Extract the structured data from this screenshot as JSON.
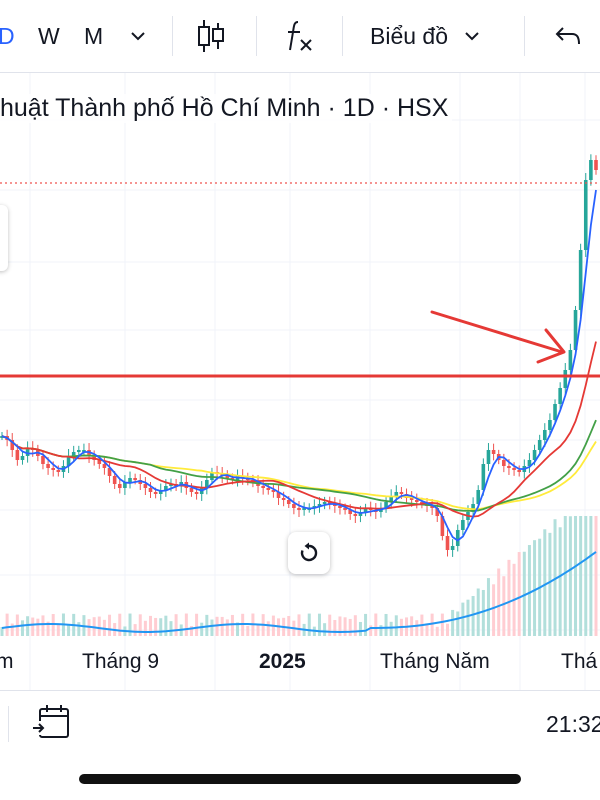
{
  "toolbar": {
    "interval_d": "D",
    "interval_w": "W",
    "interval_m": "M",
    "chart_type_label": "Biểu đồ",
    "indicators_icon": "fx-icon",
    "candle_icon": "candlestick-icon",
    "undo_icon": "undo-icon"
  },
  "chart": {
    "title": "huật Thành phố Hồ Chí Minh · 1D · HSX",
    "x_labels": [
      "m",
      "Tháng 9",
      "2025",
      "Tháng Năm",
      "Thá"
    ]
  },
  "bottom": {
    "time": "21:32"
  },
  "colors": {
    "up": "#26a69a",
    "down": "#ef5350",
    "ma_fast": "#2962ff",
    "ma_mid": "#e53935",
    "ma_slow": "#43a047",
    "ma_long": "#ffeb3b",
    "volume_line": "#2196f3",
    "annotation": "#e53935",
    "accent": "#2962ff"
  },
  "chart_data": {
    "type": "candlestick",
    "title": "huật Thành phố Hồ Chí Minh · 1D · HSX",
    "xlabel": "",
    "ylabel": "",
    "x_ticks": [
      "m",
      "Tháng 9",
      "2025",
      "Tháng Năm",
      "Thá"
    ],
    "series": [
      {
        "values": [
          0.62,
          0.6,
          0.55,
          0.5,
          0.52,
          0.56,
          0.55,
          0.52,
          0.48,
          0.46,
          0.45,
          0.44,
          0.47,
          0.52,
          0.54,
          0.55,
          0.55,
          0.52,
          0.5,
          0.48,
          0.46,
          0.42,
          0.38,
          0.36,
          0.39,
          0.41,
          0.4,
          0.38,
          0.36,
          0.34,
          0.33,
          0.35,
          0.37,
          0.38,
          0.37,
          0.39,
          0.36,
          0.34,
          0.33,
          0.36,
          0.4,
          0.44,
          0.43,
          0.42,
          0.41,
          0.4,
          0.42,
          0.41,
          0.4,
          0.39,
          0.37,
          0.36,
          0.35,
          0.34,
          0.31,
          0.3,
          0.28,
          0.26,
          0.25,
          0.26,
          0.26,
          0.27,
          0.28,
          0.29,
          0.28,
          0.27,
          0.26,
          0.25,
          0.23,
          0.22,
          0.24,
          0.26,
          0.25,
          0.24,
          0.26,
          0.29,
          0.32,
          0.34,
          0.33,
          0.31,
          0.3,
          0.29,
          0.28,
          0.27,
          0.26,
          0.22,
          0.12,
          0.05,
          0.07,
          0.15,
          0.2,
          0.24,
          0.28,
          0.35,
          0.48,
          0.55,
          0.53,
          0.5,
          0.47,
          0.46,
          0.45,
          0.44,
          0.47,
          0.5,
          0.55,
          0.6,
          0.65,
          0.7,
          0.78,
          0.86,
          0.95,
          1.05,
          1.25,
          1.55,
          1.9,
          2.0,
          1.95
        ]
      }
    ],
    "moving_averages": 4,
    "has_volume": true,
    "annotations": [
      "horizontal-line",
      "arrow"
    ],
    "grid": true
  }
}
